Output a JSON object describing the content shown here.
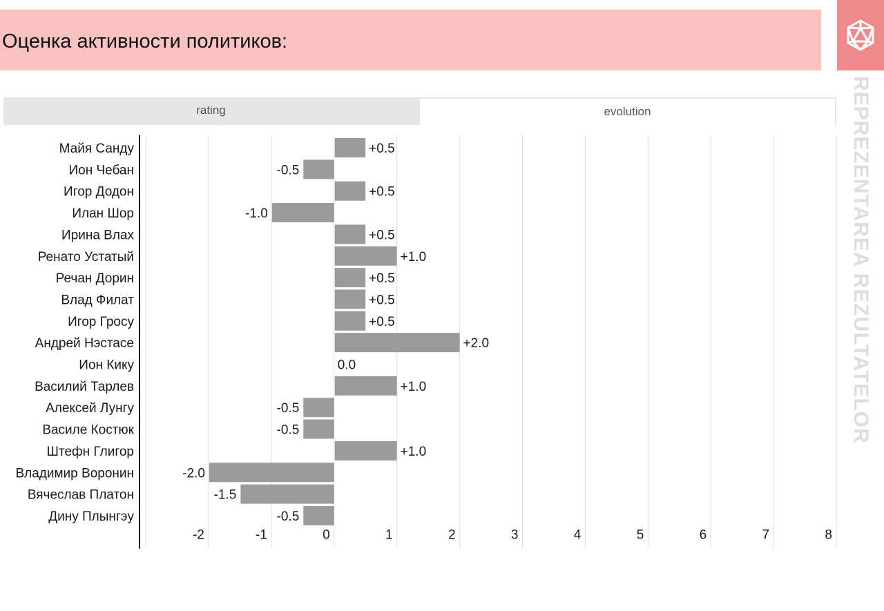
{
  "header": {
    "title": "Оценка активности политиков:"
  },
  "side_banner": {
    "text": "REPREZENTAREA REZULTATELOR",
    "logo_icon": "d20-dice-icon"
  },
  "tabs": [
    {
      "label": "rating",
      "active": false
    },
    {
      "label": "evolution",
      "active": true
    }
  ],
  "colors": {
    "header_bg": "#fbc2c2",
    "logo_bg": "#f08a8a",
    "bar": "#9b9b9b",
    "grid": "#dedede"
  },
  "chart_data": {
    "type": "bar",
    "orientation": "horizontal",
    "categories": [
      "Майя Санду",
      "Ион Чебан",
      "Игор Додон",
      "Илан Шор",
      "Ирина Влах",
      "Ренато Устатый",
      "Речан Дорин",
      "Влад Филат",
      "Игор Гросу",
      "Андрей Нэстасе",
      "Ион Кику",
      "Василий Тарлев",
      "Алексей Лунгу",
      "Василе Костюк",
      "Штефн Глигор",
      "Владимир Воронин",
      "Вячеслав Платон",
      "Дину Плынгэу"
    ],
    "values": [
      0.5,
      -0.5,
      0.5,
      -1.0,
      0.5,
      1.0,
      0.5,
      0.5,
      0.5,
      2.0,
      0.0,
      1.0,
      -0.5,
      -0.5,
      1.0,
      -2.0,
      -1.5,
      -0.5
    ],
    "value_labels": [
      "+0.5",
      "-0.5",
      "+0.5",
      "-1.0",
      "+0.5",
      "+1.0",
      "+0.5",
      "+0.5",
      "+0.5",
      "+2.0",
      "0.0",
      "+1.0",
      "-0.5",
      "-0.5",
      "+1.0",
      "-2.0",
      "-1.5",
      "-0.5"
    ],
    "xlim": [
      -3,
      8
    ],
    "xticks": [
      -2,
      -1,
      0,
      1,
      2,
      3,
      4,
      5,
      6,
      7,
      8
    ],
    "xtick_labels": [
      "-2",
      "-1",
      "0",
      "1",
      "2",
      "3",
      "4",
      "5",
      "6",
      "7",
      "8"
    ],
    "grid": true,
    "title": "",
    "xlabel": "",
    "ylabel": ""
  }
}
